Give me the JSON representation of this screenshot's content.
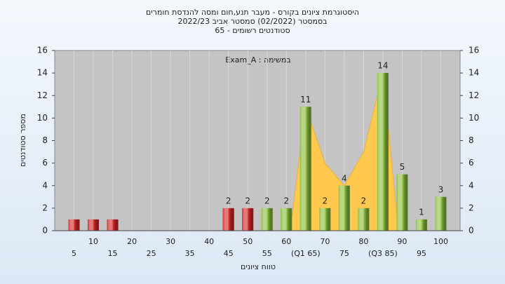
{
  "chart_data": {
    "type": "bar",
    "title": [
      "היסטוגרמת ציונים בקורס - מעבר תנע,חום ומסה להנדסת חומרים",
      "בסמסטר (02/2022) סמסטר אביב 2022/23",
      "סטודנטים רשומים - 65"
    ],
    "annotation": "במשימה : Exam_A",
    "x_label": "טווח ציונים",
    "y_label": "מספר סטודנטים",
    "categories": [
      "5",
      "10",
      "15",
      "20",
      "25",
      "30",
      "35",
      "40",
      "45",
      "50",
      "55",
      "60",
      "(Q1 65)",
      "70",
      "75",
      "80",
      "(Q3 85)",
      "90",
      "95",
      "100"
    ],
    "values": [
      1,
      1,
      1,
      0,
      0,
      0,
      0,
      0,
      2,
      2,
      2,
      2,
      11,
      2,
      4,
      2,
      14,
      5,
      1,
      3
    ],
    "value_labels": [
      null,
      null,
      null,
      null,
      null,
      null,
      null,
      null,
      "2",
      "2",
      "2",
      "2",
      "11",
      "2",
      "4",
      "2",
      "14",
      "5",
      "1",
      "3"
    ],
    "colors": [
      "#d42a2a",
      "#d42a2a",
      "#d42a2a",
      "#d42a2a",
      "#d42a2a",
      "#d42a2a",
      "#d42a2a",
      "#d42a2a",
      "#d42a2a",
      "#d42a2a",
      "#8cbf3f",
      "#8cbf3f",
      "#8cbf3f",
      "#8cbf3f",
      "#8cbf3f",
      "#8cbf3f",
      "#8cbf3f",
      "#8cbf3f",
      "#8cbf3f",
      "#8cbf3f"
    ],
    "area": {
      "color": "#ffc94f",
      "x": [
        61,
        65,
        70,
        75,
        80,
        85,
        89
      ],
      "values": [
        0,
        11,
        6,
        4,
        7,
        14,
        0
      ]
    },
    "ylim": [
      0,
      16
    ],
    "yticks": [
      0,
      2,
      4,
      6,
      8,
      10,
      12,
      14,
      16
    ],
    "right_axis": true,
    "grid": true
  }
}
